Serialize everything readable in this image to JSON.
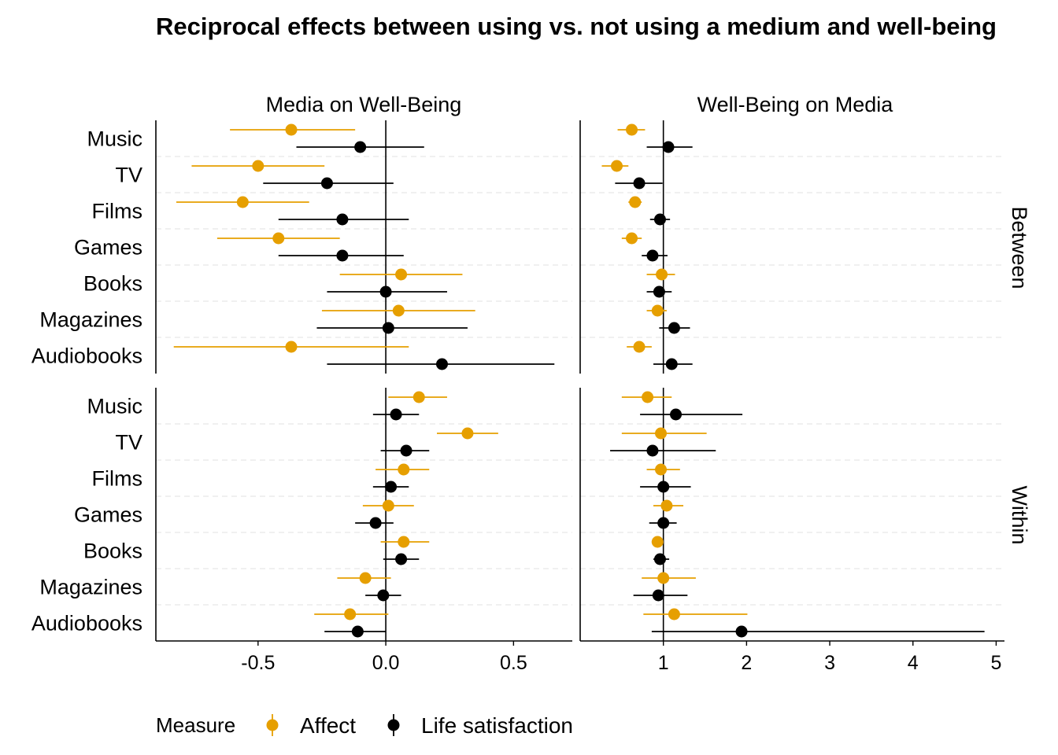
{
  "chart_data": {
    "type": "scatter",
    "title": "Reciprocal effects between using vs. not using a medium and well-being",
    "panels_columns": [
      "Media on Well-Being",
      "Well-Being on Media"
    ],
    "panels_rows": [
      "Between",
      "Within"
    ],
    "categories": [
      "Music",
      "TV",
      "Films",
      "Games",
      "Books",
      "Magazines",
      "Audiobooks"
    ],
    "legend": {
      "title": "Measure",
      "position": "bottom-left",
      "entries": [
        "Affect",
        "Life satisfaction"
      ]
    },
    "colors": {
      "Affect": "#E69F00",
      "Life satisfaction": "#000000",
      "grid": "#e6e6e6"
    },
    "reference_lines": {
      "Media on Well-Being": 0,
      "Well-Being on Media": 1
    },
    "axes": {
      "Media on Well-Being": {
        "xlim": [
          -0.9,
          0.73
        ],
        "ticks": [
          -0.5,
          0.0,
          0.5
        ],
        "tick_labels": [
          "-0.5",
          "0.0",
          "0.5"
        ]
      },
      "Well-Being on Media": {
        "xlim": [
          0.0,
          5.1
        ],
        "ticks": [
          1,
          2,
          3,
          4,
          5
        ],
        "tick_labels": [
          "1",
          "2",
          "3",
          "4",
          "5"
        ]
      }
    },
    "panels": [
      {
        "row": "Between",
        "col": "Media on Well-Being",
        "series": [
          {
            "name": "Affect",
            "points": [
              {
                "y": "Music",
                "x": -0.37,
                "lo": -0.61,
                "hi": -0.12
              },
              {
                "y": "TV",
                "x": -0.5,
                "lo": -0.76,
                "hi": -0.24
              },
              {
                "y": "Films",
                "x": -0.56,
                "lo": -0.82,
                "hi": -0.3
              },
              {
                "y": "Games",
                "x": -0.42,
                "lo": -0.66,
                "hi": -0.18
              },
              {
                "y": "Books",
                "x": 0.06,
                "lo": -0.18,
                "hi": 0.3
              },
              {
                "y": "Magazines",
                "x": 0.05,
                "lo": -0.25,
                "hi": 0.35
              },
              {
                "y": "Audiobooks",
                "x": -0.37,
                "lo": -0.83,
                "hi": 0.09
              }
            ]
          },
          {
            "name": "Life satisfaction",
            "points": [
              {
                "y": "Music",
                "x": -0.1,
                "lo": -0.35,
                "hi": 0.15
              },
              {
                "y": "TV",
                "x": -0.23,
                "lo": -0.48,
                "hi": 0.03
              },
              {
                "y": "Films",
                "x": -0.17,
                "lo": -0.42,
                "hi": 0.09
              },
              {
                "y": "Games",
                "x": -0.17,
                "lo": -0.42,
                "hi": 0.07
              },
              {
                "y": "Books",
                "x": 0.0,
                "lo": -0.23,
                "hi": 0.24
              },
              {
                "y": "Magazines",
                "x": 0.01,
                "lo": -0.27,
                "hi": 0.32
              },
              {
                "y": "Audiobooks",
                "x": 0.22,
                "lo": -0.23,
                "hi": 0.66
              }
            ]
          }
        ]
      },
      {
        "row": "Between",
        "col": "Well-Being on Media",
        "series": [
          {
            "name": "Affect",
            "points": [
              {
                "y": "Music",
                "x": 0.62,
                "lo": 0.45,
                "hi": 0.78
              },
              {
                "y": "TV",
                "x": 0.44,
                "lo": 0.26,
                "hi": 0.58
              },
              {
                "y": "Films",
                "x": 0.66,
                "lo": 0.58,
                "hi": 0.74
              },
              {
                "y": "Games",
                "x": 0.62,
                "lo": 0.5,
                "hi": 0.74
              },
              {
                "y": "Books",
                "x": 0.98,
                "lo": 0.8,
                "hi": 1.14
              },
              {
                "y": "Magazines",
                "x": 0.93,
                "lo": 0.8,
                "hi": 1.04
              },
              {
                "y": "Audiobooks",
                "x": 0.71,
                "lo": 0.56,
                "hi": 0.86
              }
            ]
          },
          {
            "name": "Life satisfaction",
            "points": [
              {
                "y": "Music",
                "x": 1.06,
                "lo": 0.8,
                "hi": 1.35
              },
              {
                "y": "TV",
                "x": 0.71,
                "lo": 0.42,
                "hi": 0.99
              },
              {
                "y": "Films",
                "x": 0.96,
                "lo": 0.84,
                "hi": 1.08
              },
              {
                "y": "Games",
                "x": 0.87,
                "lo": 0.74,
                "hi": 1.05
              },
              {
                "y": "Books",
                "x": 0.95,
                "lo": 0.8,
                "hi": 1.1
              },
              {
                "y": "Magazines",
                "x": 1.13,
                "lo": 0.95,
                "hi": 1.32
              },
              {
                "y": "Audiobooks",
                "x": 1.1,
                "lo": 0.88,
                "hi": 1.35
              }
            ]
          }
        ]
      },
      {
        "row": "Within",
        "col": "Media on Well-Being",
        "series": [
          {
            "name": "Affect",
            "points": [
              {
                "y": "Music",
                "x": 0.13,
                "lo": 0.01,
                "hi": 0.24
              },
              {
                "y": "TV",
                "x": 0.32,
                "lo": 0.2,
                "hi": 0.44
              },
              {
                "y": "Films",
                "x": 0.07,
                "lo": -0.04,
                "hi": 0.17
              },
              {
                "y": "Games",
                "x": 0.01,
                "lo": -0.09,
                "hi": 0.11
              },
              {
                "y": "Books",
                "x": 0.07,
                "lo": -0.02,
                "hi": 0.17
              },
              {
                "y": "Magazines",
                "x": -0.08,
                "lo": -0.19,
                "hi": 0.02
              },
              {
                "y": "Audiobooks",
                "x": -0.14,
                "lo": -0.28,
                "hi": 0.01
              }
            ]
          },
          {
            "name": "Life satisfaction",
            "points": [
              {
                "y": "Music",
                "x": 0.04,
                "lo": -0.05,
                "hi": 0.13
              },
              {
                "y": "TV",
                "x": 0.08,
                "lo": -0.02,
                "hi": 0.17
              },
              {
                "y": "Films",
                "x": 0.02,
                "lo": -0.05,
                "hi": 0.09
              },
              {
                "y": "Games",
                "x": -0.04,
                "lo": -0.12,
                "hi": 0.03
              },
              {
                "y": "Books",
                "x": 0.06,
                "lo": -0.01,
                "hi": 0.13
              },
              {
                "y": "Magazines",
                "x": -0.01,
                "lo": -0.08,
                "hi": 0.06
              },
              {
                "y": "Audiobooks",
                "x": -0.11,
                "lo": -0.24,
                "hi": 0.0
              }
            ]
          }
        ]
      },
      {
        "row": "Within",
        "col": "Well-Being on Media",
        "series": [
          {
            "name": "Affect",
            "points": [
              {
                "y": "Music",
                "x": 0.81,
                "lo": 0.5,
                "hi": 1.1
              },
              {
                "y": "TV",
                "x": 0.97,
                "lo": 0.5,
                "hi": 1.52
              },
              {
                "y": "Films",
                "x": 0.97,
                "lo": 0.8,
                "hi": 1.2
              },
              {
                "y": "Games",
                "x": 1.04,
                "lo": 0.88,
                "hi": 1.24
              },
              {
                "y": "Books",
                "x": 0.93,
                "lo": 0.86,
                "hi": 0.99
              },
              {
                "y": "Magazines",
                "x": 1.0,
                "lo": 0.74,
                "hi": 1.39
              },
              {
                "y": "Audiobooks",
                "x": 1.13,
                "lo": 0.76,
                "hi": 2.01
              }
            ]
          },
          {
            "name": "Life satisfaction",
            "points": [
              {
                "y": "Music",
                "x": 1.15,
                "lo": 0.72,
                "hi": 1.95
              },
              {
                "y": "TV",
                "x": 0.87,
                "lo": 0.36,
                "hi": 1.63
              },
              {
                "y": "Films",
                "x": 1.0,
                "lo": 0.72,
                "hi": 1.33
              },
              {
                "y": "Games",
                "x": 1.0,
                "lo": 0.83,
                "hi": 1.16
              },
              {
                "y": "Books",
                "x": 0.96,
                "lo": 0.88,
                "hi": 1.07
              },
              {
                "y": "Magazines",
                "x": 0.94,
                "lo": 0.64,
                "hi": 1.29
              },
              {
                "y": "Audiobooks",
                "x": 1.94,
                "lo": 0.86,
                "hi": 4.86
              }
            ]
          }
        ]
      }
    ]
  }
}
